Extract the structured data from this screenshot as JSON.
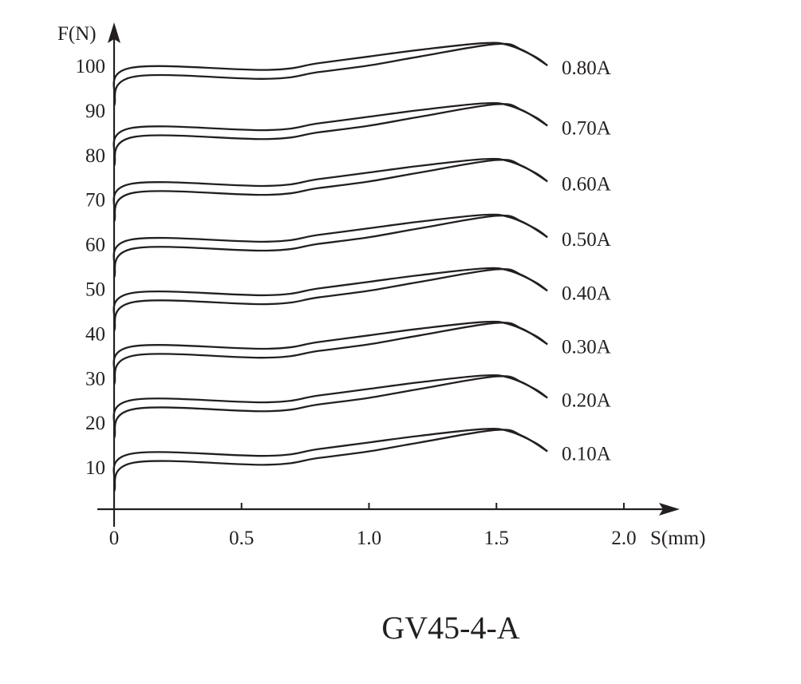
{
  "chart_data": {
    "type": "line",
    "title": "GV45-4-A",
    "xlabel": "S(mm)",
    "ylabel": "F(N)",
    "xlim": [
      0,
      2.2
    ],
    "ylim": [
      0,
      110
    ],
    "xticks": [
      "0",
      "0.5",
      "1.0",
      "1.5",
      "2.0"
    ],
    "xtick_values": [
      0,
      0.5,
      1.0,
      1.5,
      2.0
    ],
    "yticks": [
      "10",
      "20",
      "30",
      "40",
      "50",
      "60",
      "70",
      "80",
      "90",
      "100"
    ],
    "ytick_values": [
      10,
      20,
      30,
      40,
      50,
      60,
      70,
      80,
      90,
      100
    ],
    "grid": false,
    "line_color": "#231f20",
    "x_upper": [
      0,
      0.07,
      0.6,
      0.8,
      1.0,
      1.2,
      1.45,
      1.55,
      1.65,
      1.7
    ],
    "x_lower": [
      0,
      0.08,
      0.6,
      0.8,
      1.0,
      1.2,
      1.5,
      1.6,
      1.7
    ],
    "series": [
      {
        "name": "0.80A",
        "upper": [
          93,
          99.5,
          99,
          100.5,
          102,
          103.5,
          105,
          104.5,
          102,
          100
        ],
        "lower": [
          91,
          97.5,
          97,
          98.5,
          100,
          102,
          104.8,
          103.5,
          100
        ]
      },
      {
        "name": "0.70A",
        "upper": [
          79.5,
          86,
          85.5,
          87,
          88.5,
          90,
          91.5,
          91,
          88.5,
          86.5
        ],
        "lower": [
          77.5,
          84,
          83.5,
          85,
          86.5,
          88.5,
          91.3,
          90,
          86.5
        ]
      },
      {
        "name": "0.60A",
        "upper": [
          67,
          73.5,
          73,
          74.5,
          76,
          77.5,
          79,
          78.5,
          76,
          74
        ],
        "lower": [
          65,
          71.5,
          71,
          72.5,
          74,
          76,
          78.8,
          77.5,
          74
        ]
      },
      {
        "name": "0.50A",
        "upper": [
          54.5,
          61,
          60.5,
          62,
          63.5,
          65,
          66.5,
          66,
          63.5,
          61.5
        ],
        "lower": [
          52.5,
          59,
          58.5,
          60,
          61.5,
          63.5,
          66.3,
          65,
          61.5
        ]
      },
      {
        "name": "0.40A",
        "upper": [
          42.5,
          49,
          48.5,
          50,
          51.5,
          53,
          54.5,
          54,
          51.5,
          49.5
        ],
        "lower": [
          40.5,
          47,
          46.5,
          48,
          49.5,
          51.5,
          54.3,
          53,
          49.5
        ]
      },
      {
        "name": "0.30A",
        "upper": [
          30.5,
          37,
          36.5,
          38,
          39.5,
          41,
          42.5,
          42,
          39.5,
          37.5
        ],
        "lower": [
          28.5,
          35,
          34.5,
          36,
          37.5,
          39.5,
          42.3,
          41,
          37.5
        ]
      },
      {
        "name": "0.20A",
        "upper": [
          18.5,
          25,
          24.5,
          26,
          27.5,
          29,
          30.5,
          30,
          27.5,
          25.5
        ],
        "lower": [
          16.5,
          23,
          22.5,
          24,
          25.5,
          27.5,
          30.3,
          29,
          25.5
        ]
      },
      {
        "name": "0.10A",
        "upper": [
          6.5,
          13,
          12.5,
          14,
          15.5,
          17,
          18.5,
          18,
          15.5,
          13.5
        ],
        "lower": [
          4.5,
          11,
          10.5,
          12,
          13.5,
          15.5,
          18.3,
          17,
          13.5
        ]
      }
    ]
  }
}
